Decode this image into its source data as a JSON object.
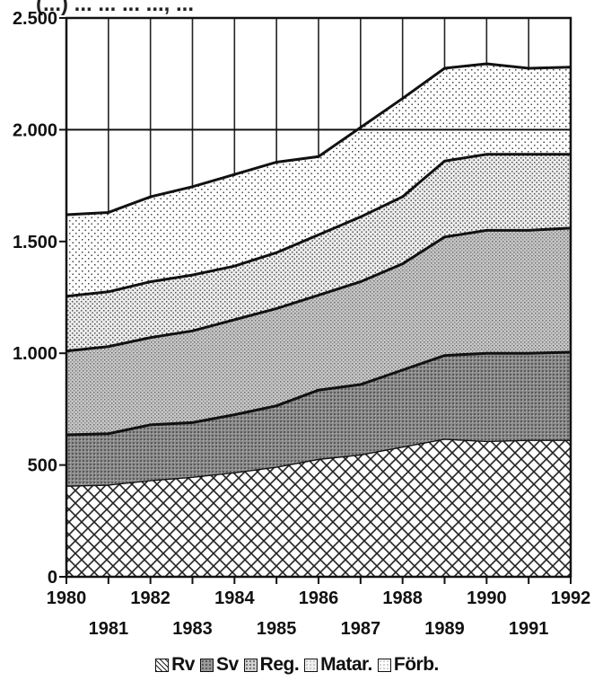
{
  "chart_data": {
    "type": "area",
    "title": "",
    "stacked": true,
    "x": [
      1980,
      1981,
      1982,
      1983,
      1984,
      1985,
      1986,
      1987,
      1988,
      1989,
      1990,
      1991,
      1992
    ],
    "x_tick_labels_row1": [
      "1980",
      "1982",
      "1984",
      "1986",
      "1988",
      "1990",
      "1992"
    ],
    "x_tick_labels_row2": [
      "1981",
      "1983",
      "1985",
      "1987",
      "1989",
      "1991"
    ],
    "y_tick_labels": [
      "0",
      "500",
      "1.000",
      "1.500",
      "2.000",
      "2.500"
    ],
    "y_ticks": [
      0,
      500,
      1000,
      1500,
      2000,
      2500
    ],
    "ylim": [
      0,
      2500
    ],
    "grid": "vertical lines at each year; horizontal line at 2.000",
    "legend_position": "bottom",
    "series": [
      {
        "name": "Rv",
        "pattern": "crosshatch",
        "cumulative": [
          405,
          410,
          430,
          445,
          465,
          490,
          525,
          545,
          580,
          615,
          605,
          610,
          610
        ]
      },
      {
        "name": "Sv",
        "pattern": "dark-dotted",
        "cumulative": [
          635,
          640,
          680,
          690,
          725,
          765,
          835,
          860,
          925,
          990,
          1000,
          1000,
          1005
        ]
      },
      {
        "name": "Reg.",
        "pattern": "dense-dotted",
        "cumulative": [
          1010,
          1030,
          1070,
          1100,
          1150,
          1200,
          1260,
          1320,
          1400,
          1520,
          1550,
          1550,
          1560
        ]
      },
      {
        "name": "Matar.",
        "pattern": "light-dotted",
        "cumulative": [
          1255,
          1275,
          1320,
          1350,
          1390,
          1450,
          1530,
          1610,
          1700,
          1860,
          1890,
          1890,
          1890
        ]
      },
      {
        "name": "Förb.",
        "pattern": "sparse-dotted",
        "cumulative": [
          1620,
          1630,
          1700,
          1745,
          1800,
          1855,
          1880,
          2010,
          2140,
          2275,
          2295,
          2275,
          2280
        ]
      }
    ]
  },
  "title_fragment": "(...) ... ... ... ..., ...",
  "legend": {
    "items": [
      {
        "label": "Rv",
        "pattern": "crosshatch"
      },
      {
        "label": "Sv",
        "pattern": "dark-dotted"
      },
      {
        "label": "Reg.",
        "pattern": "dense-dotted"
      },
      {
        "label": "Matar.",
        "pattern": "light-dotted"
      },
      {
        "label": "Förb.",
        "pattern": "sparse-dotted"
      }
    ]
  }
}
